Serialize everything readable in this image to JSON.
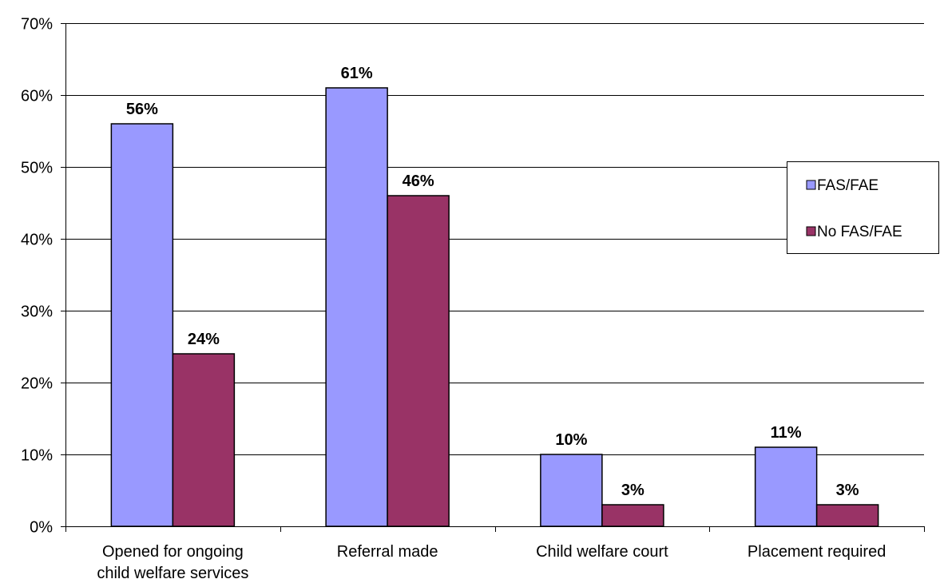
{
  "chart_data": {
    "type": "bar",
    "title": "",
    "xlabel": "",
    "ylabel": "",
    "ylim": [
      0,
      70
    ],
    "y_ticks": [
      "0%",
      "10%",
      "20%",
      "30%",
      "40%",
      "50%",
      "60%",
      "70%"
    ],
    "y_tick_values": [
      0,
      10,
      20,
      30,
      40,
      50,
      60,
      70
    ],
    "y_unit": "%",
    "grid": true,
    "legend_position": "right",
    "categories": [
      [
        "Opened for ongoing",
        "child welfare services"
      ],
      [
        "Referral made"
      ],
      [
        "Child welfare court"
      ],
      [
        "Placement required"
      ]
    ],
    "series": [
      {
        "name": "FAS/FAE",
        "color": "#9999FF",
        "values": [
          56,
          61,
          10,
          11
        ],
        "labels": [
          "56%",
          "61%",
          "10%",
          "11%"
        ]
      },
      {
        "name": "No FAS/FAE",
        "color": "#993366",
        "values": [
          24,
          46,
          3,
          3
        ],
        "labels": [
          "24%",
          "46%",
          "3%",
          "3%"
        ]
      }
    ]
  }
}
